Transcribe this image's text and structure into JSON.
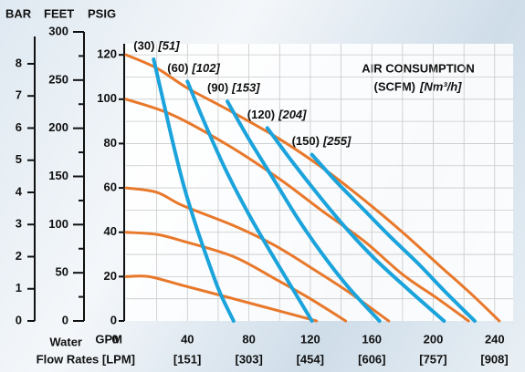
{
  "chart_data": {
    "type": "line",
    "title": "AIR CONSUMPTION",
    "subtitle": [
      "(SCFM)",
      "[Nm³/h]"
    ],
    "xlabel": [
      "GPM",
      "Water",
      "Flow Rates [LPM]"
    ],
    "xlim": [
      0,
      252
    ],
    "xticks": [
      0,
      40,
      80,
      120,
      160,
      200,
      240
    ],
    "x2lim": [
      0,
      954
    ],
    "x2ticks": [
      {
        "value": 151,
        "label": "[151]"
      },
      {
        "value": 303,
        "label": "[303]"
      },
      {
        "value": 454,
        "label": "[454]"
      },
      {
        "value": 606,
        "label": "[606]"
      },
      {
        "value": 757,
        "label": "[757]"
      },
      {
        "value": 908,
        "label": "[908]"
      }
    ],
    "xgrid": [
      20,
      40,
      60,
      80,
      100,
      120,
      140,
      160,
      180,
      200,
      220,
      240
    ],
    "ylabel": "PSIG",
    "ylim": [
      0,
      125
    ],
    "yticks": [
      0,
      20,
      40,
      60,
      80,
      100,
      120
    ],
    "ygrid": [
      10,
      20,
      30,
      40,
      50,
      60,
      70,
      80,
      90,
      100,
      110,
      120
    ],
    "feet_axis": {
      "label": "FEET",
      "lim": [
        0,
        300
      ],
      "ticks": [
        0,
        50,
        100,
        150,
        200,
        250,
        300
      ],
      "minor": [
        25,
        75,
        125,
        175,
        225,
        275
      ]
    },
    "bar_axis": {
      "label": "BAR",
      "lim": [
        0,
        8.85
      ],
      "ticks": [
        0,
        1,
        2,
        3,
        4,
        5,
        6,
        7,
        8
      ]
    },
    "grid": true,
    "series": [
      {
        "color": "#e8782a",
        "x": [
          0,
          20,
          40,
          67,
          100,
          130,
          156,
          180,
          204,
          225,
          243
        ],
        "values": [
          120,
          114,
          105,
          95,
          82,
          68,
          54,
          40,
          25,
          12,
          0
        ]
      },
      {
        "color": "#e8782a",
        "x": [
          0,
          30,
          67,
          100,
          127,
          155,
          180,
          203,
          223
        ],
        "values": [
          100,
          93,
          79,
          64,
          50,
          36,
          21,
          10,
          0
        ]
      },
      {
        "color": "#e8782a",
        "x": [
          0,
          20,
          37,
          70,
          97,
          125,
          145,
          171
        ],
        "values": [
          60,
          58,
          52,
          43,
          34,
          22,
          13,
          0
        ]
      },
      {
        "color": "#e8782a",
        "x": [
          0,
          20,
          37,
          70,
          97,
          120,
          143
        ],
        "values": [
          40,
          39,
          36,
          29,
          19,
          10,
          0
        ]
      },
      {
        "color": "#e8782a",
        "x": [
          0,
          15,
          37,
          70,
          97,
          124
        ],
        "values": [
          20,
          20,
          16,
          10,
          5,
          0
        ]
      },
      {
        "name": "(30)",
        "name2": "[51]",
        "color": "#1ba3dc",
        "x": [
          18,
          24,
          31,
          38,
          46,
          54,
          61,
          70
        ],
        "values": [
          118,
          100,
          79,
          60,
          42,
          26,
          13,
          0
        ]
      },
      {
        "name": "(60)",
        "name2": "[102]",
        "color": "#1ba3dc",
        "x": [
          40,
          52,
          65,
          80,
          95,
          108,
          121
        ],
        "values": [
          108,
          88,
          68,
          48,
          30,
          15,
          0
        ]
      },
      {
        "name": "(90)",
        "name2": "[153]",
        "color": "#1ba3dc",
        "x": [
          66,
          80,
          96,
          112,
          128,
          145,
          165
        ],
        "values": [
          99,
          82,
          64,
          46,
          30,
          15,
          0
        ]
      },
      {
        "name": "(120)",
        "name2": "[204]",
        "color": "#1ba3dc",
        "x": [
          92,
          108,
          125,
          143,
          162,
          184,
          207
        ],
        "values": [
          87,
          72,
          57,
          42,
          28,
          14,
          0
        ]
      },
      {
        "name": "(150)",
        "name2": "[255]",
        "color": "#1ba3dc",
        "x": [
          121,
          138,
          155,
          172,
          190,
          208,
          227
        ],
        "values": [
          75,
          62,
          50,
          38,
          26,
          13,
          0
        ]
      }
    ]
  }
}
